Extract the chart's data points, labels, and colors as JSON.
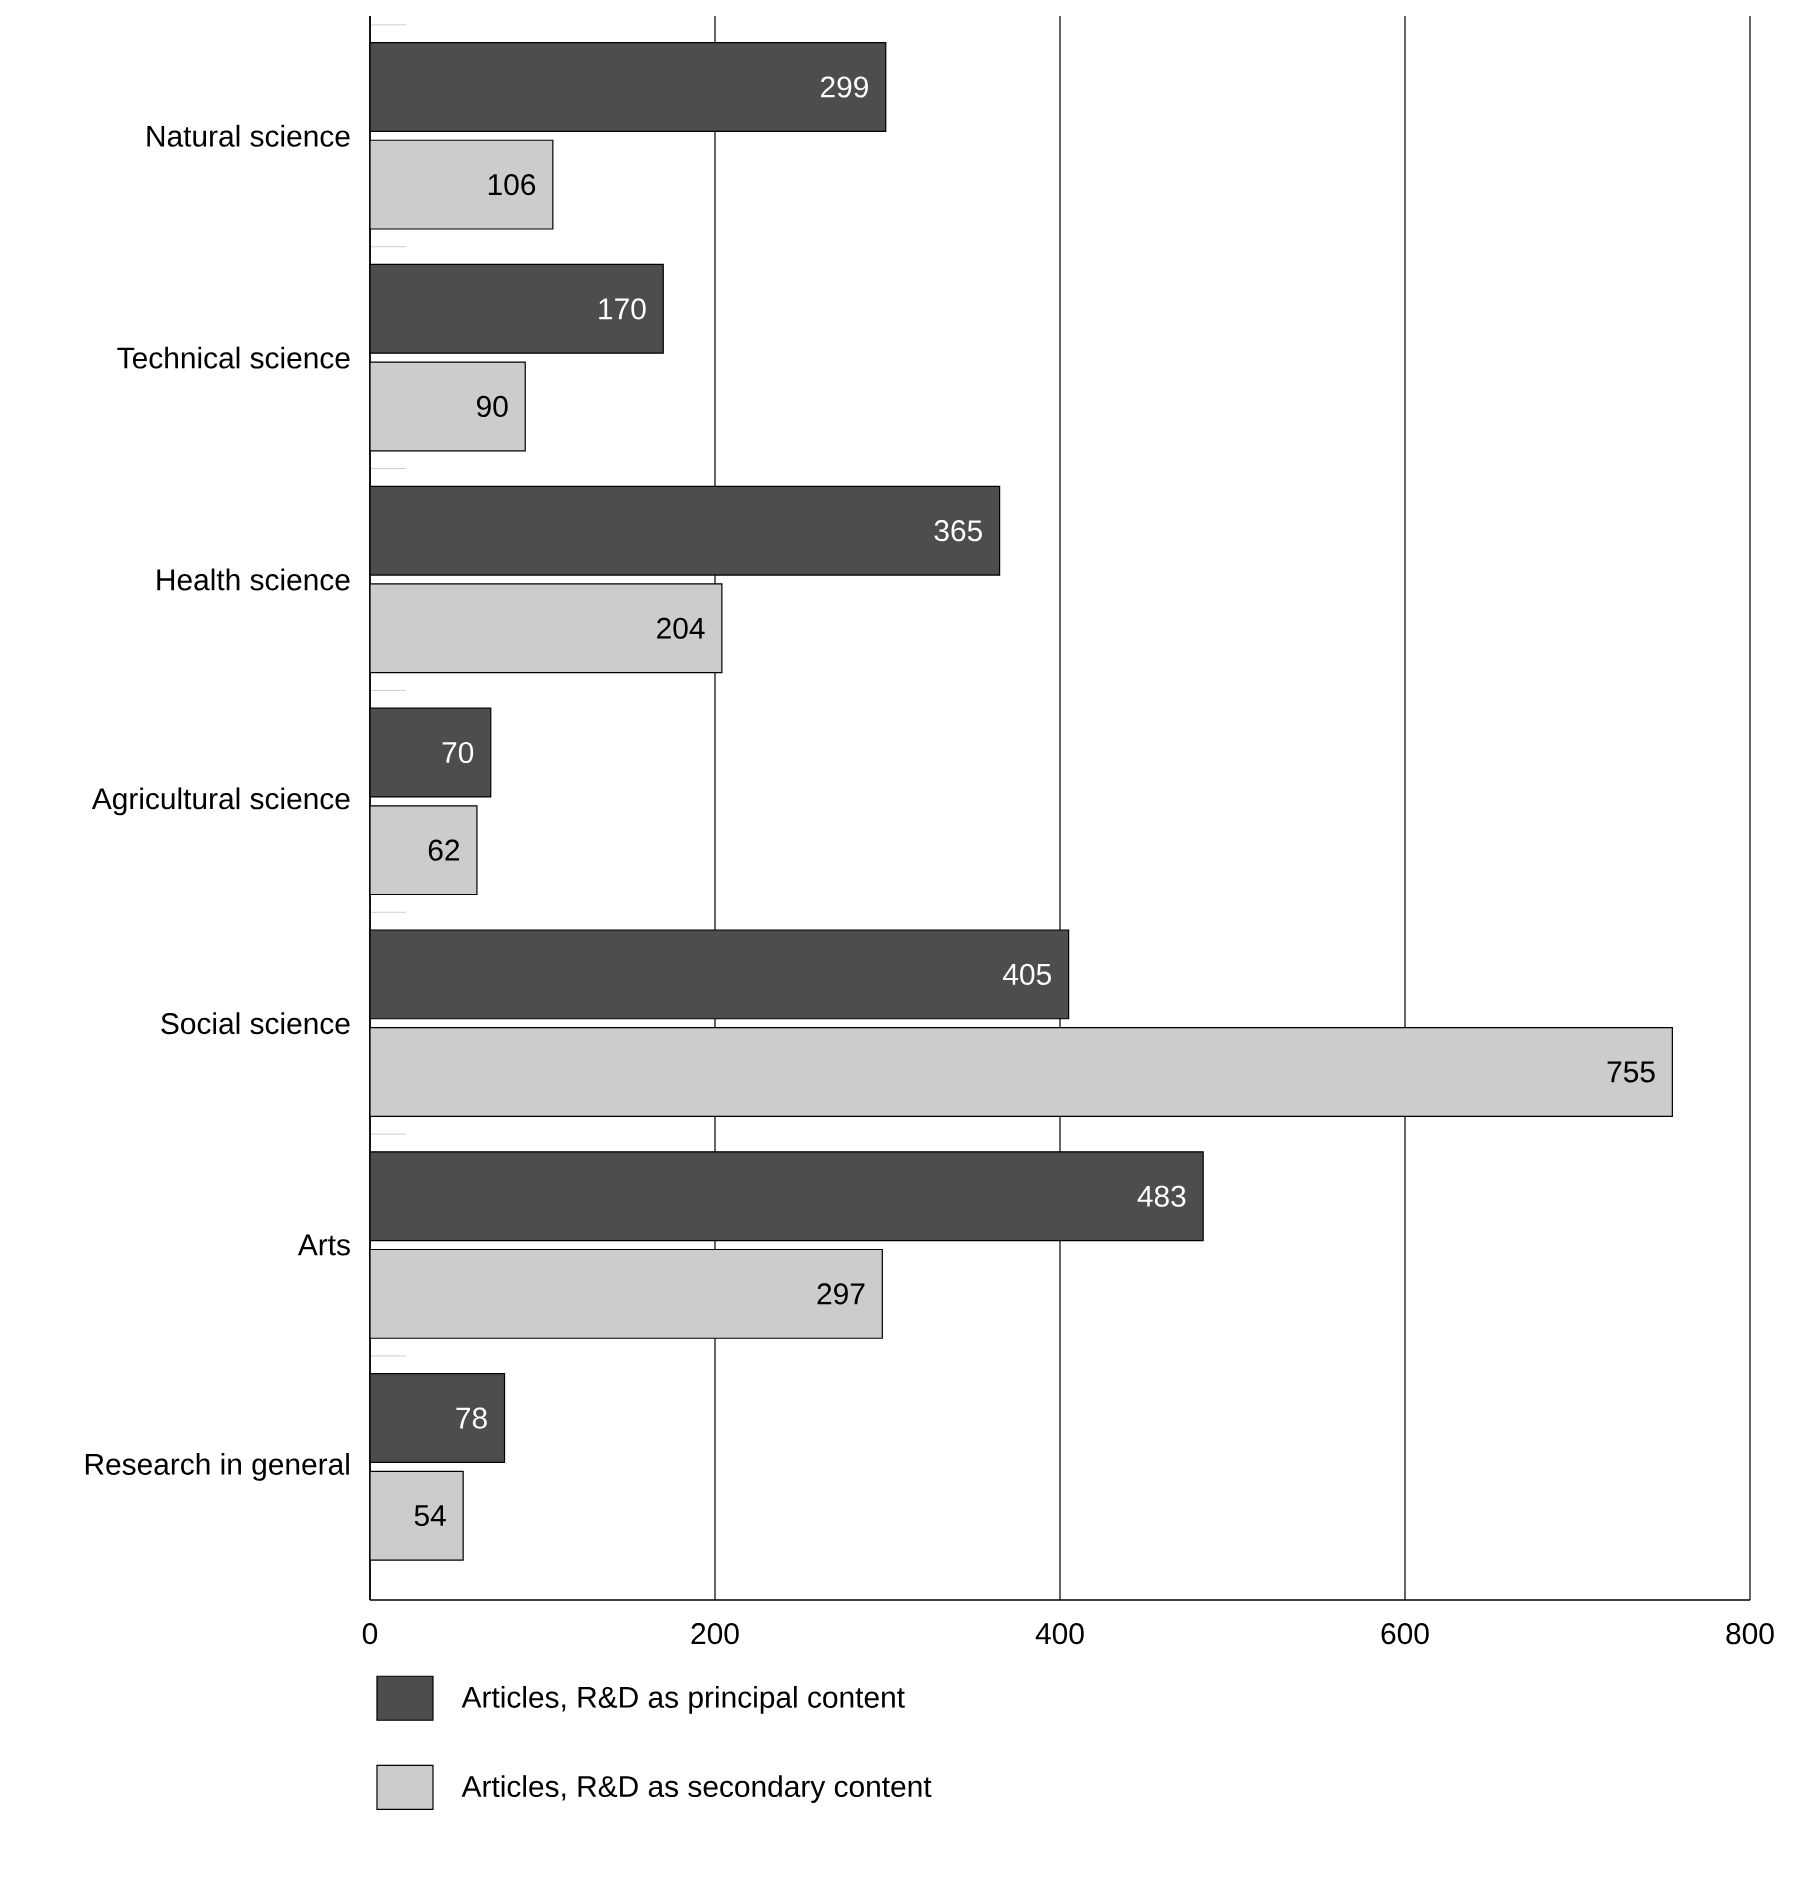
{
  "chart_data": {
    "type": "bar",
    "orientation": "horizontal",
    "categories": [
      "Natural science",
      "Technical science",
      "Health science",
      "Agricultural science",
      "Social science",
      "Arts",
      "Research in general"
    ],
    "series": [
      {
        "name": "Articles, R&D as principal content",
        "color": "#4d4d4d",
        "values": [
          299,
          170,
          365,
          70,
          405,
          483,
          78
        ]
      },
      {
        "name": "Articles, R&D as secondary content",
        "color": "#cccccc",
        "values": [
          106,
          90,
          204,
          62,
          755,
          297,
          54
        ]
      }
    ],
    "xlim": [
      0,
      800
    ],
    "xticks": [
      0,
      200,
      400,
      600,
      800
    ],
    "grid": "x",
    "legend": "bottom",
    "data_labels": true
  }
}
